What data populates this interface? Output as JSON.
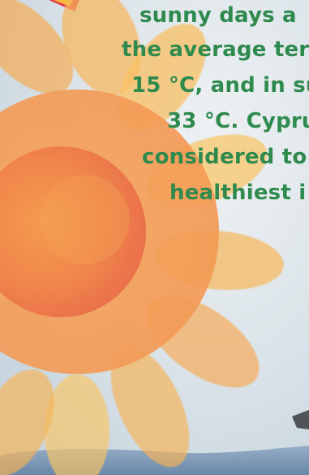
{
  "colors": {
    "caption_text": "#2f8a4e",
    "sky": "#d8e3ea",
    "sun_petal": "#f8b24c",
    "sun_core": "#f07b48",
    "sea": "#6f8fb0",
    "ribbon": "#e6374a"
  },
  "caption": {
    "lines": [
      "sunny days a",
      "the average ter",
      "15 °C, and in su",
      "33 °C. Cypru",
      "considered to",
      "healthiest i"
    ]
  },
  "icons": {
    "sun": "sun-illustration",
    "ribbon": "ribbon-corner",
    "boat": "boat-hull"
  }
}
